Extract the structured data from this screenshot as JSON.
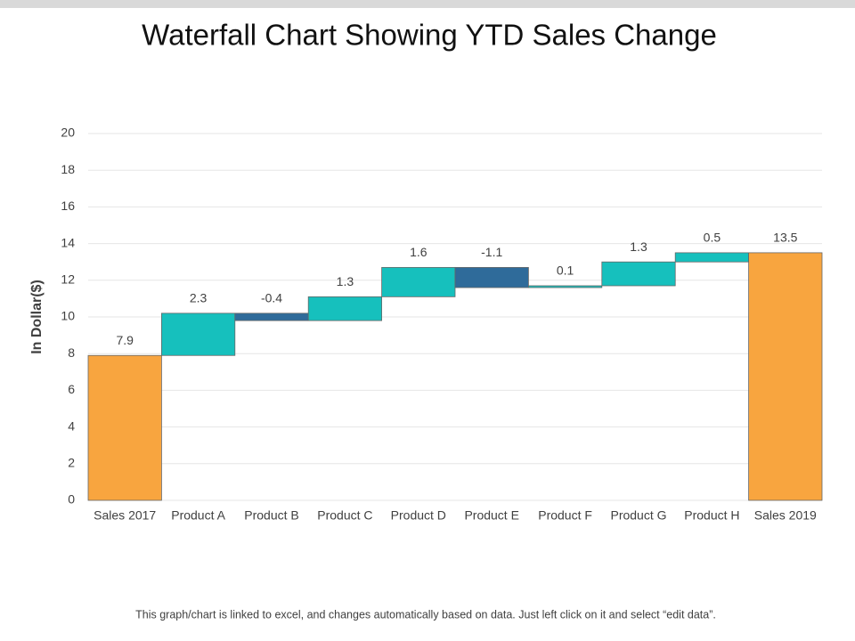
{
  "chart_data": {
    "type": "waterfall",
    "title": "Waterfall Chart Showing YTD Sales Change",
    "y_label": "In Dollar($)",
    "categories": [
      "Sales 2017",
      "Product A",
      "Product B",
      "Product C",
      "Product D",
      "Product E",
      "Product F",
      "Product G",
      "Product H",
      "Sales 2019"
    ],
    "values": [
      7.9,
      2.3,
      -0.4,
      1.3,
      1.6,
      -1.1,
      0.1,
      1.3,
      0.5,
      13.5
    ],
    "totals": [
      true,
      false,
      false,
      false,
      false,
      false,
      false,
      false,
      false,
      true
    ],
    "total_color": "#f8a53f",
    "increase_color": "#16c0bd",
    "decrease_color": "#2f6b9a",
    "ylim": [
      0,
      20
    ],
    "yticks": [
      0,
      2,
      4,
      6,
      8,
      10,
      12,
      14,
      16,
      18,
      20
    ],
    "grid": true
  },
  "footer": "This graph/chart is linked to excel, and changes automatically based on data. Just left click on it and select “edit data”."
}
